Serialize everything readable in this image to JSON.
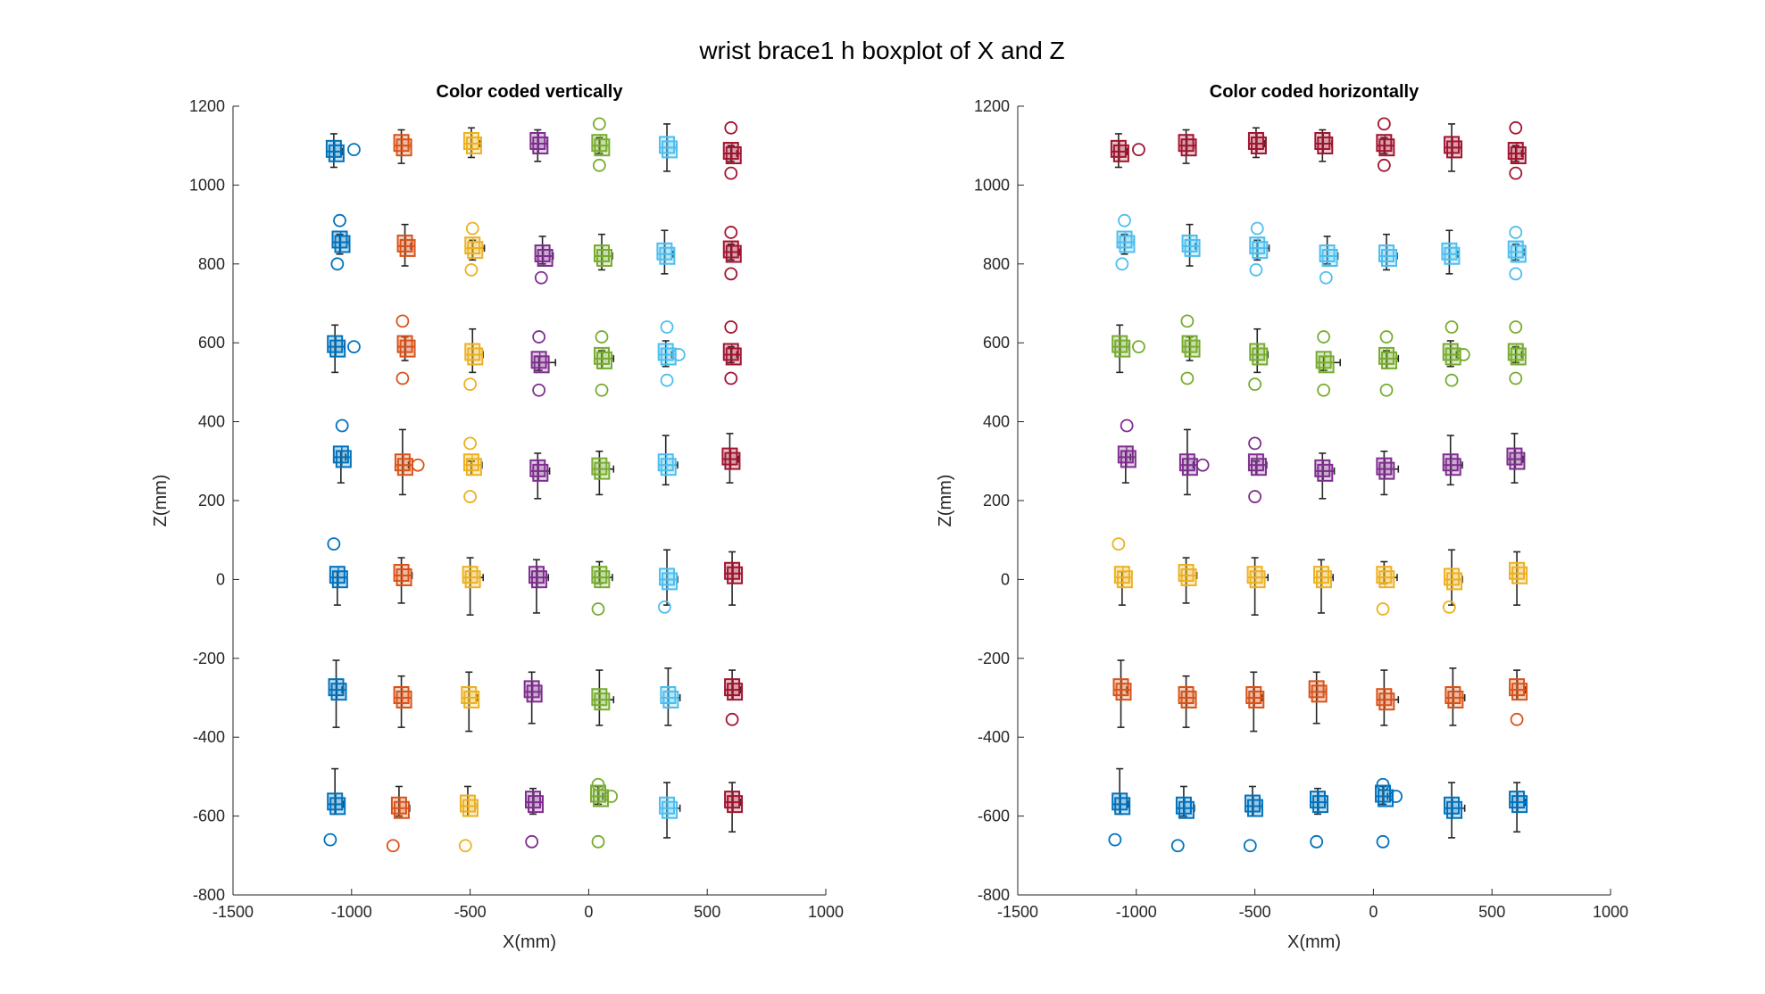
{
  "figure": {
    "title": "wrist brace1 h boxplot of X and Z"
  },
  "colors": {
    "blue": "#0072BD",
    "orange": "#D95319",
    "yellow": "#EDB120",
    "purple": "#7E2F8E",
    "green": "#77AC30",
    "cyan": "#4DBEEE",
    "red": "#A2142F",
    "whisker": "#262626"
  },
  "chart_data": [
    {
      "type": "box",
      "title": "Color coded vertically",
      "xlabel": "X(mm)",
      "ylabel": "Z(mm)",
      "xlim": [
        -1500,
        1000
      ],
      "ylim": [
        -800,
        1200
      ],
      "xticks": [
        -1500,
        -1000,
        -500,
        0,
        500,
        1000
      ],
      "xticklabels": [
        "-1500",
        "-1000",
        "-500",
        "0",
        "500",
        "1000"
      ],
      "yticks": [
        -800,
        -600,
        -400,
        -200,
        0,
        200,
        400,
        600,
        800,
        1000,
        1200
      ],
      "yticklabels": [
        "-800",
        "-600",
        "-400",
        "-200",
        "0",
        "200",
        "400",
        "600",
        "800",
        "1000",
        "1200"
      ],
      "grid": false,
      "coloring": "by column",
      "column_colors": [
        "blue",
        "orange",
        "yellow",
        "purple",
        "green",
        "cyan",
        "red"
      ],
      "rows": [
        {
          "row": 1,
          "points": [
            {
              "x": -1075,
              "z": 1085,
              "zlo": 1045,
              "zhi": 1130,
              "xlo": -1100,
              "xhi": -1040,
              "outliers": [
                [
                  -990,
                  1090
                ]
              ]
            },
            {
              "x": -790,
              "z": 1100,
              "zlo": 1055,
              "zhi": 1140,
              "xlo": -810,
              "xhi": -750,
              "outliers": []
            },
            {
              "x": -495,
              "z": 1105,
              "zlo": 1070,
              "zhi": 1145,
              "xlo": -520,
              "xhi": -460,
              "outliers": []
            },
            {
              "x": -215,
              "z": 1105,
              "zlo": 1060,
              "zhi": 1140,
              "xlo": -245,
              "xhi": -175,
              "outliers": []
            },
            {
              "x": 45,
              "z": 1100,
              "zlo": 1080,
              "zhi": 1120,
              "xlo": 30,
              "xhi": 75,
              "outliers": [
                [
                  45,
                  1155
                ],
                [
                  45,
                  1050
                ]
              ]
            },
            {
              "x": 330,
              "z": 1095,
              "zlo": 1035,
              "zhi": 1155,
              "xlo": 310,
              "xhi": 370,
              "outliers": []
            },
            {
              "x": 600,
              "z": 1080,
              "zlo": 1060,
              "zhi": 1100,
              "xlo": 580,
              "xhi": 625,
              "outliers": [
                [
                  600,
                  1145
                ],
                [
                  600,
                  1030
                ]
              ]
            }
          ]
        },
        {
          "row": 2,
          "points": [
            {
              "x": -1050,
              "z": 855,
              "zlo": 825,
              "zhi": 875,
              "xlo": -1075,
              "xhi": -1010,
              "outliers": [
                [
                  -1050,
                  910
                ],
                [
                  -1060,
                  800
                ]
              ]
            },
            {
              "x": -775,
              "z": 845,
              "zlo": 795,
              "zhi": 900,
              "xlo": -800,
              "xhi": -750,
              "outliers": []
            },
            {
              "x": -490,
              "z": 840,
              "zlo": 810,
              "zhi": 860,
              "xlo": -510,
              "xhi": -440,
              "outliers": [
                [
                  -490,
                  890
                ],
                [
                  -495,
                  785
                ]
              ]
            },
            {
              "x": -195,
              "z": 820,
              "zlo": 800,
              "zhi": 870,
              "xlo": -220,
              "xhi": -150,
              "outliers": [
                [
                  -200,
                  765
                ]
              ]
            },
            {
              "x": 55,
              "z": 820,
              "zlo": 785,
              "zhi": 875,
              "xlo": 30,
              "xhi": 100,
              "outliers": []
            },
            {
              "x": 320,
              "z": 825,
              "zlo": 775,
              "zhi": 885,
              "xlo": 300,
              "xhi": 355,
              "outliers": []
            },
            {
              "x": 600,
              "z": 830,
              "zlo": 810,
              "zhi": 850,
              "xlo": 580,
              "xhi": 635,
              "outliers": [
                [
                  600,
                  880
                ],
                [
                  600,
                  775
                ]
              ]
            }
          ]
        },
        {
          "row": 3,
          "points": [
            {
              "x": -1070,
              "z": 590,
              "zlo": 525,
              "zhi": 645,
              "xlo": -1090,
              "xhi": -1030,
              "outliers": [
                [
                  -990,
                  590
                ]
              ]
            },
            {
              "x": -775,
              "z": 590,
              "zlo": 555,
              "zhi": 615,
              "xlo": -800,
              "xhi": -745,
              "outliers": [
                [
                  -785,
                  655
                ],
                [
                  -785,
                  510
                ]
              ]
            },
            {
              "x": -490,
              "z": 570,
              "zlo": 525,
              "zhi": 635,
              "xlo": -515,
              "xhi": -445,
              "outliers": [
                [
                  -500,
                  495
                ]
              ]
            },
            {
              "x": -210,
              "z": 550,
              "zlo": 530,
              "zhi": 565,
              "xlo": -230,
              "xhi": -140,
              "outliers": [
                [
                  -210,
                  615
                ],
                [
                  -210,
                  480
                ]
              ]
            },
            {
              "x": 55,
              "z": 560,
              "zlo": 535,
              "zhi": 580,
              "xlo": 30,
              "xhi": 105,
              "outliers": [
                [
                  55,
                  615
                ],
                [
                  55,
                  480
                ]
              ]
            },
            {
              "x": 325,
              "z": 570,
              "zlo": 540,
              "zhi": 605,
              "xlo": 300,
              "xhi": 350,
              "outliers": [
                [
                  330,
                  640
                ],
                [
                  330,
                  505
                ],
                [
                  380,
                  570
                ]
              ]
            },
            {
              "x": 600,
              "z": 570,
              "zlo": 550,
              "zhi": 590,
              "xlo": 580,
              "xhi": 625,
              "outliers": [
                [
                  600,
                  640
                ],
                [
                  600,
                  510
                ]
              ]
            }
          ]
        },
        {
          "row": 4,
          "points": [
            {
              "x": -1045,
              "z": 310,
              "zlo": 245,
              "zhi": 325,
              "xlo": -1070,
              "xhi": -1025,
              "outliers": [
                [
                  -1040,
                  390
                ]
              ]
            },
            {
              "x": -785,
              "z": 290,
              "zlo": 215,
              "zhi": 380,
              "xlo": -800,
              "xhi": -760,
              "outliers": [
                [
                  -720,
                  290
                ]
              ]
            },
            {
              "x": -495,
              "z": 290,
              "zlo": 265,
              "zhi": 300,
              "xlo": -520,
              "xhi": -450,
              "outliers": [
                [
                  -500,
                  345
                ],
                [
                  -500,
                  210
                ]
              ]
            },
            {
              "x": -215,
              "z": 275,
              "zlo": 205,
              "zhi": 320,
              "xlo": -240,
              "xhi": -165,
              "outliers": []
            },
            {
              "x": 45,
              "z": 280,
              "zlo": 215,
              "zhi": 325,
              "xlo": 20,
              "xhi": 105,
              "outliers": []
            },
            {
              "x": 325,
              "z": 290,
              "zlo": 240,
              "zhi": 365,
              "xlo": 305,
              "xhi": 375,
              "outliers": []
            },
            {
              "x": 595,
              "z": 305,
              "zlo": 245,
              "zhi": 370,
              "xlo": 570,
              "xhi": 630,
              "outliers": []
            }
          ]
        },
        {
          "row": 5,
          "points": [
            {
              "x": -1060,
              "z": 5,
              "zlo": -65,
              "zhi": 20,
              "xlo": -1090,
              "xhi": -1030,
              "outliers": [
                [
                  -1075,
                  90
                ]
              ]
            },
            {
              "x": -790,
              "z": 10,
              "zlo": -60,
              "zhi": 55,
              "xlo": -810,
              "xhi": -745,
              "outliers": []
            },
            {
              "x": -500,
              "z": 5,
              "zlo": -90,
              "zhi": 55,
              "xlo": -520,
              "xhi": -445,
              "outliers": []
            },
            {
              "x": -220,
              "z": 5,
              "zlo": -85,
              "zhi": 50,
              "xlo": -245,
              "xhi": -170,
              "outliers": []
            },
            {
              "x": 45,
              "z": 5,
              "zlo": -10,
              "zhi": 45,
              "xlo": 20,
              "xhi": 100,
              "outliers": [
                [
                  40,
                  -75
                ]
              ]
            },
            {
              "x": 330,
              "z": 0,
              "zlo": -65,
              "zhi": 75,
              "xlo": 305,
              "xhi": 375,
              "outliers": [
                [
                  320,
                  -70
                ]
              ]
            },
            {
              "x": 605,
              "z": 15,
              "zlo": -65,
              "zhi": 70,
              "xlo": 580,
              "xhi": 635,
              "outliers": []
            }
          ]
        },
        {
          "row": 6,
          "points": [
            {
              "x": -1065,
              "z": -280,
              "zlo": -375,
              "zhi": -205,
              "xlo": -1090,
              "xhi": -1040,
              "outliers": []
            },
            {
              "x": -790,
              "z": -300,
              "zlo": -375,
              "zhi": -245,
              "xlo": -805,
              "xhi": -760,
              "outliers": []
            },
            {
              "x": -505,
              "z": -300,
              "zlo": -385,
              "zhi": -235,
              "xlo": -525,
              "xhi": -470,
              "outliers": []
            },
            {
              "x": -240,
              "z": -285,
              "zlo": -365,
              "zhi": -235,
              "xlo": -260,
              "xhi": -200,
              "outliers": []
            },
            {
              "x": 45,
              "z": -305,
              "zlo": -370,
              "zhi": -230,
              "xlo": 20,
              "xhi": 105,
              "outliers": []
            },
            {
              "x": 335,
              "z": -300,
              "zlo": -370,
              "zhi": -225,
              "xlo": 310,
              "xhi": 385,
              "outliers": []
            },
            {
              "x": 605,
              "z": -280,
              "zlo": -305,
              "zhi": -230,
              "xlo": 585,
              "xhi": 640,
              "outliers": [
                [
                  605,
                  -355
                ]
              ]
            }
          ]
        },
        {
          "row": 7,
          "points": [
            {
              "x": -1070,
              "z": -570,
              "zlo": -595,
              "zhi": -480,
              "xlo": -1095,
              "xhi": -1035,
              "outliers": [
                [
                  -1090,
                  -660
                ]
              ]
            },
            {
              "x": -800,
              "z": -580,
              "zlo": -600,
              "zhi": -525,
              "xlo": -820,
              "xhi": -755,
              "outliers": [
                [
                  -825,
                  -675
                ]
              ]
            },
            {
              "x": -510,
              "z": -575,
              "zlo": -600,
              "zhi": -525,
              "xlo": -530,
              "xhi": -470,
              "outliers": [
                [
                  -520,
                  -675
                ]
              ]
            },
            {
              "x": -235,
              "z": -565,
              "zlo": -595,
              "zhi": -530,
              "xlo": -255,
              "xhi": -195,
              "outliers": [
                [
                  -240,
                  -665
                ]
              ]
            },
            {
              "x": 40,
              "z": -550,
              "zlo": -570,
              "zhi": -525,
              "xlo": 25,
              "xhi": 60,
              "outliers": [
                [
                  40,
                  -520
                ],
                [
                  95,
                  -550
                ],
                [
                  40,
                  -665
                ]
              ]
            },
            {
              "x": 330,
              "z": -580,
              "zlo": -655,
              "zhi": -515,
              "xlo": 305,
              "xhi": 385,
              "outliers": []
            },
            {
              "x": 605,
              "z": -565,
              "zlo": -640,
              "zhi": -515,
              "xlo": 580,
              "xhi": 640,
              "outliers": []
            }
          ]
        }
      ]
    },
    {
      "type": "box",
      "title": "Color coded horizontally",
      "xlabel": "X(mm)",
      "ylabel": "Z(mm)",
      "xlim": [
        -1500,
        1000
      ],
      "ylim": [
        -800,
        1200
      ],
      "xticks": [
        -1500,
        -1000,
        -500,
        0,
        500,
        1000
      ],
      "xticklabels": [
        "-1500",
        "-1000",
        "-500",
        "0",
        "500",
        "1000"
      ],
      "yticks": [
        -800,
        -600,
        -400,
        -200,
        0,
        200,
        400,
        600,
        800,
        1000,
        1200
      ],
      "yticklabels": [
        "-800",
        "-600",
        "-400",
        "-200",
        "0",
        "200",
        "400",
        "600",
        "800",
        "1000",
        "1200"
      ],
      "grid": false,
      "coloring": "by row",
      "row_colors": [
        "red",
        "cyan",
        "green",
        "purple",
        "yellow",
        "orange",
        "blue"
      ],
      "same_data_as": "Color coded vertically"
    }
  ]
}
